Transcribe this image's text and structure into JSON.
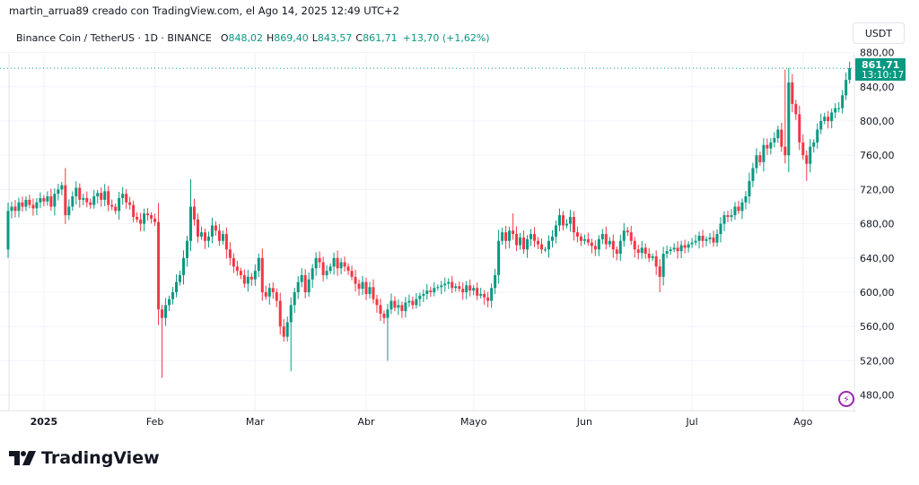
{
  "header": {
    "credit": "martin_arrua89 creado con TradingView.com, el Ago 14, 2025 12:49 UTC+2",
    "symbol": "Binance Coin / TetherUS · 1D · BINANCE",
    "open_label": "O",
    "open": "848,02",
    "high_label": "H",
    "high": "869,40",
    "low_label": "L",
    "low": "843,57",
    "close_label": "C",
    "close": "861,71",
    "change": "+13,70 (+1,62%)"
  },
  "currency_button": "USDT",
  "last_price": {
    "price": "861,71",
    "countdown": "13:10:17"
  },
  "logo_text": "TradingView",
  "colors": {
    "up": "#089981",
    "down": "#F23645",
    "grid": "#f0f3fa",
    "accent_icon": "#9c27b0"
  },
  "chart_data": {
    "type": "candlestick",
    "title": "",
    "period": "1D",
    "x_range": [
      "2024-12-22",
      "2025-08-14"
    ],
    "ylim": [
      460,
      885
    ],
    "grid": true,
    "y_ticks": [
      "880,00",
      "840,00",
      "800,00",
      "760,00",
      "720,00",
      "680,00",
      "640,00",
      "600,00",
      "560,00",
      "520,00",
      "480,00"
    ],
    "y_tick_values": [
      880,
      840,
      800,
      760,
      720,
      680,
      640,
      600,
      560,
      520,
      480
    ],
    "x_ticks": [
      {
        "label": "2025",
        "date": "2025-01-01"
      },
      {
        "label": "Feb",
        "date": "2025-02-01"
      },
      {
        "label": "Mar",
        "date": "2025-03-01"
      },
      {
        "label": "Abr",
        "date": "2025-04-01"
      },
      {
        "label": "Mayo",
        "date": "2025-05-01"
      },
      {
        "label": "Jun",
        "date": "2025-06-01"
      },
      {
        "label": "Jul",
        "date": "2025-07-01"
      },
      {
        "label": "Ago",
        "date": "2025-08-01"
      }
    ],
    "first_open": 650,
    "last_value": 861.71,
    "close": [
      695,
      700,
      695,
      705,
      700,
      708,
      702,
      698,
      705,
      710,
      706,
      712,
      700,
      715,
      720,
      725,
      690,
      700,
      712,
      722,
      708,
      710,
      705,
      702,
      712,
      716,
      708,
      718,
      702,
      700,
      695,
      710,
      715,
      705,
      702,
      688,
      685,
      680,
      692,
      690,
      686,
      682,
      580,
      570,
      585,
      592,
      600,
      612,
      620,
      640,
      660,
      700,
      685,
      665,
      670,
      660,
      665,
      678,
      672,
      660,
      668,
      650,
      640,
      630,
      625,
      620,
      610,
      618,
      615,
      625,
      640,
      600,
      595,
      605,
      600,
      590,
      560,
      548,
      565,
      585,
      600,
      612,
      620,
      600,
      615,
      628,
      640,
      635,
      620,
      625,
      630,
      640,
      628,
      635,
      630,
      625,
      618,
      610,
      604,
      612,
      598,
      606,
      592,
      585,
      575,
      570,
      580,
      590,
      582,
      585,
      578,
      588,
      590,
      585,
      592,
      596,
      598,
      602,
      600,
      605,
      606,
      608,
      610,
      612,
      605,
      607,
      604,
      600,
      608,
      602,
      605,
      596,
      598,
      594,
      590,
      605,
      620,
      660,
      670,
      660,
      672,
      668,
      655,
      664,
      650,
      662,
      668,
      660,
      656,
      650,
      650,
      660,
      665,
      678,
      690,
      678,
      680,
      688,
      670,
      665,
      660,
      662,
      658,
      654,
      650,
      662,
      668,
      656,
      660,
      650,
      645,
      660,
      672,
      670,
      660,
      650,
      646,
      652,
      645,
      640,
      642,
      630,
      618,
      645,
      648,
      650,
      652,
      648,
      655,
      652,
      656,
      658,
      660,
      666,
      660,
      662,
      664,
      658,
      668,
      680,
      690,
      688,
      690,
      700,
      695,
      705,
      712,
      730,
      745,
      760,
      752,
      772,
      768,
      775,
      780,
      790,
      770,
      760,
      845,
      820,
      808,
      775,
      760,
      750,
      770,
      775,
      790,
      800,
      805,
      800,
      810,
      815,
      815,
      830,
      848,
      861.71
    ],
    "wick_extremes": [
      {
        "date": "2025-01-07",
        "high": 745
      },
      {
        "date": "2025-02-03",
        "low": 500
      },
      {
        "date": "2025-02-11",
        "high": 732
      },
      {
        "date": "2025-03-11",
        "low": 508
      },
      {
        "date": "2025-04-07",
        "low": 520
      },
      {
        "date": "2025-05-12",
        "high": 692
      },
      {
        "date": "2025-06-22",
        "low": 600
      },
      {
        "date": "2025-07-27",
        "high": 860
      },
      {
        "date": "2025-08-02",
        "low": 730
      },
      {
        "date": "2025-08-14",
        "high": 869.4,
        "low": 843.57
      }
    ]
  }
}
